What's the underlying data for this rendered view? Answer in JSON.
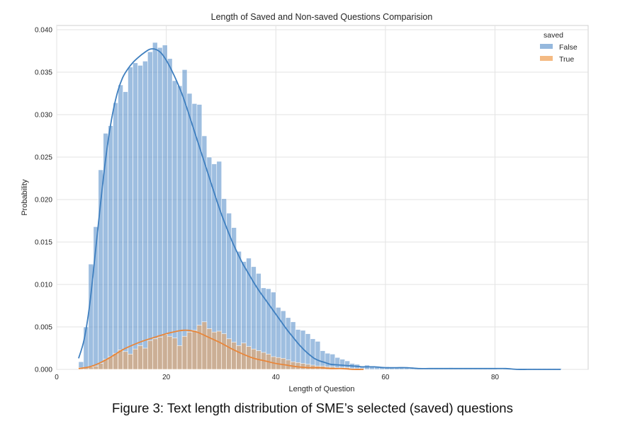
{
  "chart_data": {
    "type": "bar",
    "subtype": "histogram-with-kde",
    "title": "Length of Saved and Non-saved Questions Comparision",
    "xlabel": "Length of Question",
    "ylabel": "Probability",
    "xlim": [
      0,
      97
    ],
    "ylim": [
      0,
      0.0405
    ],
    "xticks": [
      "0",
      "20",
      "40",
      "60",
      "80"
    ],
    "xtick_values": [
      0,
      20,
      40,
      60,
      80
    ],
    "yticks": [
      "0.000",
      "0.005",
      "0.010",
      "0.015",
      "0.020",
      "0.025",
      "0.030",
      "0.035",
      "0.040"
    ],
    "ytick_values": [
      0,
      0.005,
      0.01,
      0.015,
      0.02,
      0.025,
      0.03,
      0.035,
      0.04
    ],
    "grid": true,
    "legend": {
      "title": "saved",
      "placement": "top-right"
    },
    "bin_width": 0.9,
    "bin_start": 4.0,
    "series": [
      {
        "name": "False",
        "color": "#4e89c6",
        "bin_values": [
          0.0009,
          0.005,
          0.0124,
          0.0168,
          0.0235,
          0.0278,
          0.0287,
          0.0314,
          0.0335,
          0.0327,
          0.0356,
          0.0361,
          0.0358,
          0.0363,
          0.0374,
          0.0385,
          0.0379,
          0.0382,
          0.0366,
          0.034,
          0.0334,
          0.0353,
          0.0325,
          0.0313,
          0.0312,
          0.0275,
          0.025,
          0.0242,
          0.0245,
          0.0201,
          0.0184,
          0.0167,
          0.0139,
          0.0127,
          0.0131,
          0.0121,
          0.0113,
          0.0096,
          0.0095,
          0.0091,
          0.0073,
          0.0069,
          0.0061,
          0.0056,
          0.0047,
          0.0046,
          0.0042,
          0.0036,
          0.0033,
          0.0022,
          0.0019,
          0.0018,
          0.0014,
          0.0012,
          0.001,
          0.0007,
          0.0006,
          0.0004,
          0.0005,
          0.0004,
          0.0003,
          0.0003,
          0.0003,
          0.0002,
          0.0002,
          0.0002,
          0.0002,
          0.0001,
          0.0001,
          0.0001,
          0.0001,
          0.0001,
          0.0001,
          0.0001,
          0.0001,
          0.0002,
          0.0001,
          0.0001,
          0.0001,
          0.0001,
          0.0001,
          0.0001,
          0.0001,
          0.0001,
          0.0001,
          0.0001,
          0.0001,
          0.0001,
          0.0001,
          0.0001,
          0.0001,
          0.0001,
          0.0001,
          0.0001,
          0.0001,
          0.0001,
          0.0001,
          0.0001
        ],
        "kde": {
          "x": [
            4,
            5,
            6,
            7,
            8,
            9,
            10,
            11,
            12,
            13,
            14,
            15,
            16,
            17,
            18,
            19,
            20,
            21,
            22,
            23,
            24,
            25,
            26,
            27,
            28,
            29,
            30,
            31,
            32,
            33,
            34,
            35,
            36,
            37,
            38,
            39,
            40,
            41,
            42,
            43,
            44,
            45,
            46,
            47,
            48,
            49,
            50,
            52,
            54,
            56,
            58,
            60,
            62,
            64,
            66,
            68,
            70,
            72,
            74,
            76,
            78,
            80,
            82,
            84,
            86,
            88,
            90,
            92
          ],
          "y": [
            0.0013,
            0.0035,
            0.0075,
            0.0134,
            0.0195,
            0.0251,
            0.0294,
            0.0324,
            0.0343,
            0.0354,
            0.0362,
            0.0368,
            0.0373,
            0.0377,
            0.0377,
            0.0373,
            0.0364,
            0.0352,
            0.0338,
            0.0322,
            0.0303,
            0.0283,
            0.0263,
            0.0243,
            0.0223,
            0.0203,
            0.0184,
            0.0167,
            0.0151,
            0.0137,
            0.0124,
            0.0113,
            0.0102,
            0.0092,
            0.0083,
            0.0074,
            0.0065,
            0.0056,
            0.0047,
            0.0039,
            0.0031,
            0.0024,
            0.0018,
            0.0013,
            0.001,
            0.0008,
            0.0006,
            0.0005,
            0.0004,
            0.0003,
            0.0003,
            0.0002,
            0.0002,
            0.0002,
            0.0001,
            0.0001,
            0.0001,
            0.0001,
            0.0001,
            0.0001,
            0.0001,
            0.0001,
            0.0001,
            0.0,
            0.0,
            0.0,
            0.0,
            0.0
          ]
        }
      },
      {
        "name": "True",
        "color": "#f0a35a",
        "bin_values": [
          0.0002,
          0.0002,
          0.0003,
          0.0004,
          0.0007,
          0.0012,
          0.0015,
          0.0019,
          0.0023,
          0.0021,
          0.0018,
          0.0024,
          0.0028,
          0.0025,
          0.0034,
          0.0036,
          0.0038,
          0.0041,
          0.0039,
          0.0037,
          0.0028,
          0.0039,
          0.0044,
          0.0046,
          0.0052,
          0.0056,
          0.0048,
          0.0044,
          0.0045,
          0.0042,
          0.0036,
          0.0032,
          0.0028,
          0.0031,
          0.0027,
          0.0024,
          0.0022,
          0.002,
          0.0018,
          0.0015,
          0.0014,
          0.0013,
          0.0011,
          0.0009,
          0.0008,
          0.0007,
          0.0006,
          0.0005,
          0.0004,
          0.0004,
          0.0003,
          0.0003,
          0.0002,
          0.0002,
          0.0002,
          0.0001,
          0.0001,
          0.0001
        ],
        "kde": {
          "x": [
            4,
            6,
            8,
            10,
            12,
            14,
            16,
            18,
            20,
            22,
            23,
            24,
            25,
            26,
            28,
            30,
            32,
            34,
            36,
            38,
            40,
            42,
            44,
            46,
            48,
            50,
            52,
            54,
            56
          ],
          "y": [
            0.0001,
            0.0003,
            0.0008,
            0.0015,
            0.0023,
            0.0029,
            0.0034,
            0.0038,
            0.0042,
            0.0045,
            0.0046,
            0.0046,
            0.0045,
            0.0043,
            0.0037,
            0.0031,
            0.0024,
            0.0018,
            0.0013,
            0.001,
            0.0007,
            0.0005,
            0.0003,
            0.0002,
            0.0002,
            0.0001,
            0.0001,
            0.0,
            0.0
          ]
        }
      }
    ]
  },
  "caption": "Figure 3: Text length distribution of SME’s selected (saved) questions"
}
